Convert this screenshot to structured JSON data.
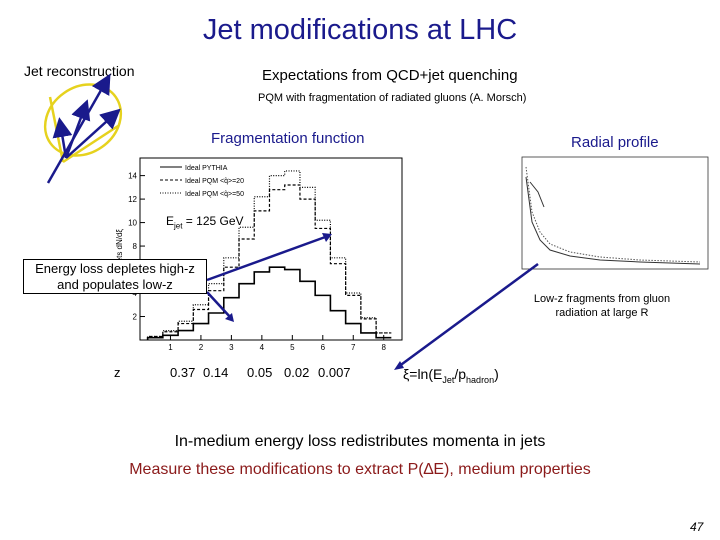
{
  "title": "Jet modifications at LHC",
  "jet_reco_label": "Jet reconstruction",
  "expectations_label": "Expectations from QCD+jet quenching",
  "pqm_label": "PQM with fragmentation of radiated gluons (A. Morsch)",
  "frag_label": "Fragmentation function",
  "radial_label": "Radial profile",
  "ejet_main": "E",
  "ejet_sub": "jet",
  "ejet_value": " = 125 GeV",
  "box_line1": "Energy loss depletes high-z",
  "box_line2": "and populates low-z",
  "lowz_line1": "Low-z fragments from gluon",
  "lowz_line2": "radiation at large R",
  "z_label": "z",
  "z_values": [
    "0.37",
    "0.14",
    "0.05",
    "0.02",
    "0.007"
  ],
  "xi_main": "ξ=ln(E",
  "xi_sub1": "Jet",
  "xi_mid": "/p",
  "xi_sub2": "hadron",
  "xi_end": ")",
  "conclusion": "In-medium energy loss redistributes momenta in jets",
  "measure_prefix": "Measure these modifications to extract P(",
  "measure_symbol": "∆E",
  "measure_suffix": "), medium properties",
  "page_number": "47",
  "colors": {
    "title": "#1a1a8c",
    "measure": "#8b1a1a",
    "arrows": "#1a1a8c",
    "cone": "#e6d21e"
  },
  "chart_data": {
    "type": "line",
    "xlabel": "",
    "ylabel": "1/N_jets dN/dξ",
    "x_ticks": [
      1,
      2,
      3,
      4,
      5,
      6,
      7,
      8
    ],
    "y_ticks": [
      2,
      4,
      6,
      8,
      10,
      12,
      14
    ],
    "xlim": [
      0,
      8.6
    ],
    "ylim": [
      0,
      15.5
    ],
    "legend": [
      "Ideal PYTHIA",
      "Ideal PQM <q̂>=20",
      "Ideal PQM <q̂>=50"
    ],
    "legend_loc": "top-left",
    "series": [
      {
        "name": "Ideal PYTHIA",
        "x": [
          0.5,
          1.0,
          1.5,
          2.0,
          2.5,
          3.0,
          3.5,
          4.0,
          4.5,
          5.0,
          5.5,
          6.0,
          6.5,
          7.0,
          7.5,
          8.0
        ],
        "y": [
          0.2,
          0.4,
          0.8,
          1.4,
          2.3,
          3.6,
          4.8,
          5.8,
          6.2,
          6.0,
          5.0,
          3.8,
          2.5,
          1.4,
          0.6,
          0.2
        ]
      },
      {
        "name": "Ideal PQM <q̂>=20",
        "x": [
          0.5,
          1.0,
          1.5,
          2.0,
          2.5,
          3.0,
          3.5,
          4.0,
          4.5,
          5.0,
          5.5,
          6.0,
          6.5,
          7.0,
          7.5,
          8.0
        ],
        "y": [
          0.3,
          0.7,
          1.4,
          2.6,
          4.2,
          6.2,
          8.6,
          11.0,
          12.8,
          13.2,
          12.0,
          9.5,
          6.5,
          3.8,
          1.8,
          0.6
        ]
      },
      {
        "name": "Ideal PQM <q̂>=50",
        "x": [
          0.5,
          1.0,
          1.5,
          2.0,
          2.5,
          3.0,
          3.5,
          4.0,
          4.5,
          5.0,
          5.5,
          6.0,
          6.5,
          7.0,
          7.5,
          8.0
        ],
        "y": [
          0.3,
          0.8,
          1.6,
          3.0,
          4.8,
          7.0,
          9.6,
          12.2,
          14.0,
          14.4,
          13.0,
          10.2,
          7.0,
          4.0,
          1.9,
          0.6
        ]
      }
    ]
  }
}
